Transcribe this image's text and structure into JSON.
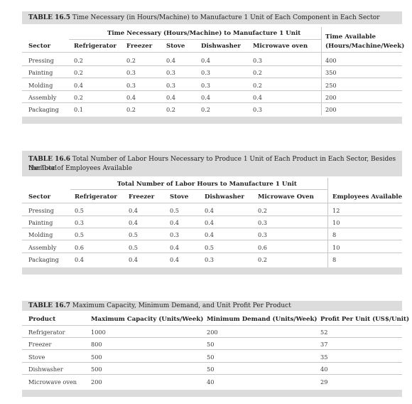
{
  "table1": {
    "label": "TABLE 16.5",
    "caption": "Time Necessary (in Hours/Machine) to Manufacture 1 Unit of Each Component in Each Sector",
    "group_header": "Time Necessary (Hours/Machine) to Manufacture 1 Unit",
    "right_header_line1": "Time Available",
    "right_header_line2": "(Hours/Machine/Week)",
    "columns": [
      "Sector",
      "Refrigerator",
      "Freezer",
      "Stove",
      "Dishwasher",
      "Microwave oven"
    ],
    "rows": [
      [
        "Pressing",
        "0.2",
        "0.2",
        "0.4",
        "0.4",
        "0.3",
        "400"
      ],
      [
        "Painting",
        "0.2",
        "0.3",
        "0.3",
        "0.3",
        "0.2",
        "350"
      ],
      [
        "Molding",
        "0.4",
        "0.3",
        "0.3",
        "0.3",
        "0.2",
        "250"
      ],
      [
        "Assembly",
        "0.2",
        "0.4",
        "0.4",
        "0.4",
        "0.4",
        "200"
      ],
      [
        "Packaging",
        "0.1",
        "0.2",
        "0.2",
        "0.2",
        "0.3",
        "200"
      ]
    ]
  },
  "table2": {
    "label": "TABLE 16.6",
    "caption_line1": "Total Number of Labor Hours Necessary to Produce 1 Unit of Each Product in Each Sector, Besides the Total",
    "caption_line2": "Number of Employees Available",
    "group_header": "Total Number of Labor Hours to Manufacture 1 Unit",
    "right_header": "Employees Available",
    "columns": [
      "Sector",
      "Refrigerator",
      "Freezer",
      "Stove",
      "Dishwasher",
      "Microwave Oven"
    ],
    "rows": [
      [
        "Pressing",
        "0.5",
        "0.4",
        "0.5",
        "0.4",
        "0.2",
        "12"
      ],
      [
        "Painting",
        "0.3",
        "0.4",
        "0.4",
        "0.4",
        "0.3",
        "10"
      ],
      [
        "Molding",
        "0.5",
        "0.5",
        "0.3",
        "0.4",
        "0.3",
        "8"
      ],
      [
        "Assembly",
        "0.6",
        "0.5",
        "0.4",
        "0.5",
        "0.6",
        "10"
      ],
      [
        "Packaging",
        "0.4",
        "0.4",
        "0.4",
        "0.3",
        "0.2",
        "8"
      ]
    ]
  },
  "table3": {
    "label": "TABLE 16.7",
    "caption": "Maximum Capacity, Minimum Demand, and Unit Profit Per Product",
    "columns": [
      "Product",
      "Maximum Capacity (Units/Week)",
      "Minimum Demand (Units/Week)",
      "Profit Per Unit (US$/Unit)"
    ],
    "rows": [
      [
        "Refrigerator",
        "1000",
        "200",
        "52"
      ],
      [
        "Freezer",
        "800",
        "50",
        "37"
      ],
      [
        "Stove",
        "500",
        "50",
        "35"
      ],
      [
        "Dishwasher",
        "500",
        "50",
        "40"
      ],
      [
        "Microwave oven",
        "200",
        "40",
        "29"
      ]
    ]
  }
}
